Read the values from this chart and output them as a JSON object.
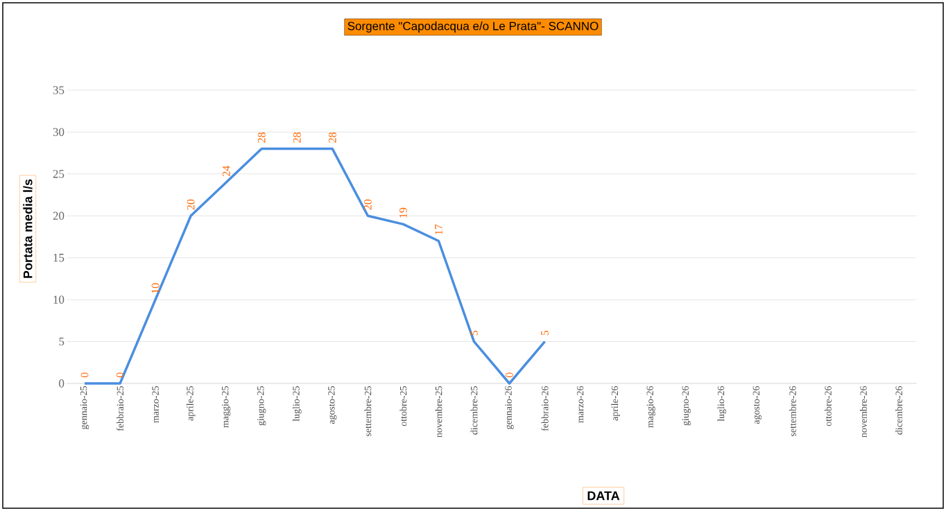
{
  "chart_data": {
    "type": "line",
    "title": "Sorgente \"Capodacqua  e/o Le Prata\"- SCANNO",
    "xlabel": "DATA",
    "ylabel": "Portata media l/s",
    "categories": [
      "gennaio-25",
      "febbraio-25",
      "marzo-25",
      "aprile-25",
      "maggio-25",
      "giugno-25",
      "luglio-25",
      "agosto-25",
      "settembre-25",
      "ottobre-25",
      "novembre-25",
      "dicembre-25",
      "gennaio-26",
      "febbraio-26",
      "marzo-26",
      "aprile-26",
      "maggio-26",
      "giugno-26",
      "luglio-26",
      "agosto-26",
      "settembre-26",
      "ottobre-26",
      "novembre-26",
      "dicembre-26"
    ],
    "series": [
      {
        "color": "#4a8ee0",
        "values": [
          0,
          0,
          10,
          20,
          24,
          28,
          28,
          28,
          20,
          19,
          17,
          5,
          0,
          5,
          null,
          null,
          null,
          null,
          null,
          null,
          null,
          null,
          null,
          null
        ],
        "value_labels": [
          "0",
          "0",
          "10",
          "20",
          "24",
          "28",
          "28",
          "28",
          "20",
          "19",
          "17",
          "5",
          "0",
          "5",
          null,
          null,
          null,
          null,
          null,
          null,
          null,
          null,
          null,
          null
        ]
      }
    ],
    "ylim": [
      0,
      35
    ],
    "yticks": [
      0,
      5,
      10,
      15,
      20,
      25,
      30,
      35
    ],
    "grid": "y",
    "legend": false,
    "marker": "none",
    "line_style": "solid"
  }
}
